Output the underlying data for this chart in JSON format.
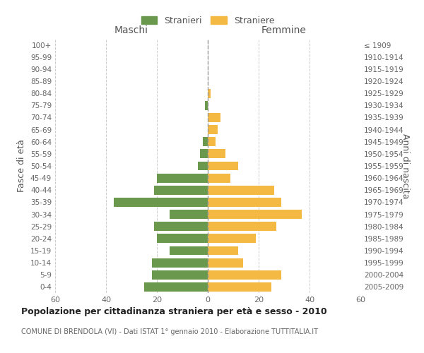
{
  "age_groups": [
    "100+",
    "95-99",
    "90-94",
    "85-89",
    "80-84",
    "75-79",
    "70-74",
    "65-69",
    "60-64",
    "55-59",
    "50-54",
    "45-49",
    "40-44",
    "35-39",
    "30-34",
    "25-29",
    "20-24",
    "15-19",
    "10-14",
    "5-9",
    "0-4"
  ],
  "birth_years": [
    "≤ 1909",
    "1910-1914",
    "1915-1919",
    "1920-1924",
    "1925-1929",
    "1930-1934",
    "1935-1939",
    "1940-1944",
    "1945-1949",
    "1950-1954",
    "1955-1959",
    "1960-1964",
    "1965-1969",
    "1970-1974",
    "1975-1979",
    "1980-1984",
    "1985-1989",
    "1990-1994",
    "1995-1999",
    "2000-2004",
    "2005-2009"
  ],
  "maschi": [
    0,
    0,
    0,
    0,
    0,
    1,
    0,
    0,
    2,
    3,
    4,
    20,
    21,
    37,
    15,
    21,
    20,
    15,
    22,
    22,
    25
  ],
  "femmine": [
    0,
    0,
    0,
    0,
    1,
    0,
    5,
    4,
    3,
    7,
    12,
    9,
    26,
    29,
    37,
    27,
    19,
    12,
    14,
    29,
    25
  ],
  "color_maschi": "#6a994e",
  "color_femmine": "#f4b942",
  "title": "Popolazione per cittadinanza straniera per età e sesso - 2010",
  "subtitle": "COMUNE DI BRENDOLA (VI) - Dati ISTAT 1° gennaio 2010 - Elaborazione TUTTITALIA.IT",
  "xlabel_left": "Maschi",
  "xlabel_right": "Femmine",
  "ylabel_left": "Fasce di età",
  "ylabel_right": "Anni di nascita",
  "legend_maschi": "Stranieri",
  "legend_femmine": "Straniere",
  "xlim": 60,
  "bg_color": "#ffffff",
  "grid_color": "#cccccc"
}
